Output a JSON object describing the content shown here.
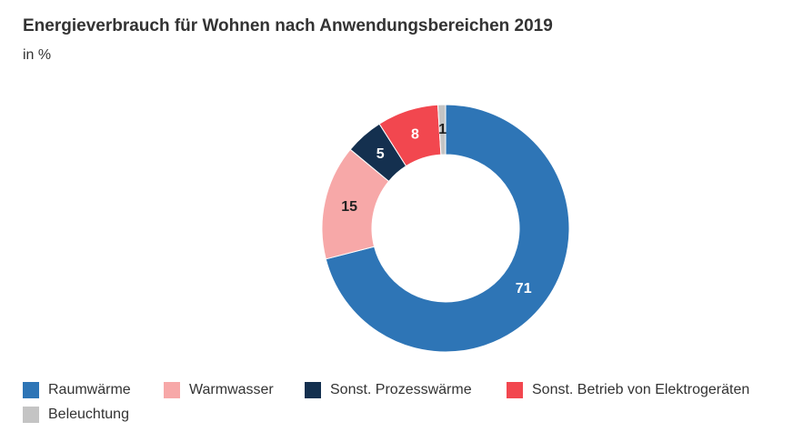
{
  "title": "Energieverbrauch für Wohnen nach Anwendungsbereichen 2019",
  "subtitle": "in %",
  "chart_data": {
    "type": "pie",
    "variant": "donut",
    "categories": [
      "Raumwärme",
      "Warmwasser",
      "Sonst. Prozesswärme",
      "Sonst. Betrieb von Elektrogeräten",
      "Beleuchtung"
    ],
    "values": [
      71,
      15,
      5,
      8,
      1
    ],
    "labels": [
      "71",
      "15",
      "5",
      "8",
      "1"
    ],
    "colors": [
      "#2e75b6",
      "#f7a8a8",
      "#14304f",
      "#f2474f",
      "#c4c4c4"
    ],
    "label_colors": [
      "#ffffff",
      "#222222",
      "#ffffff",
      "#ffffff",
      "#222222"
    ],
    "legend_position": "bottom-left"
  }
}
